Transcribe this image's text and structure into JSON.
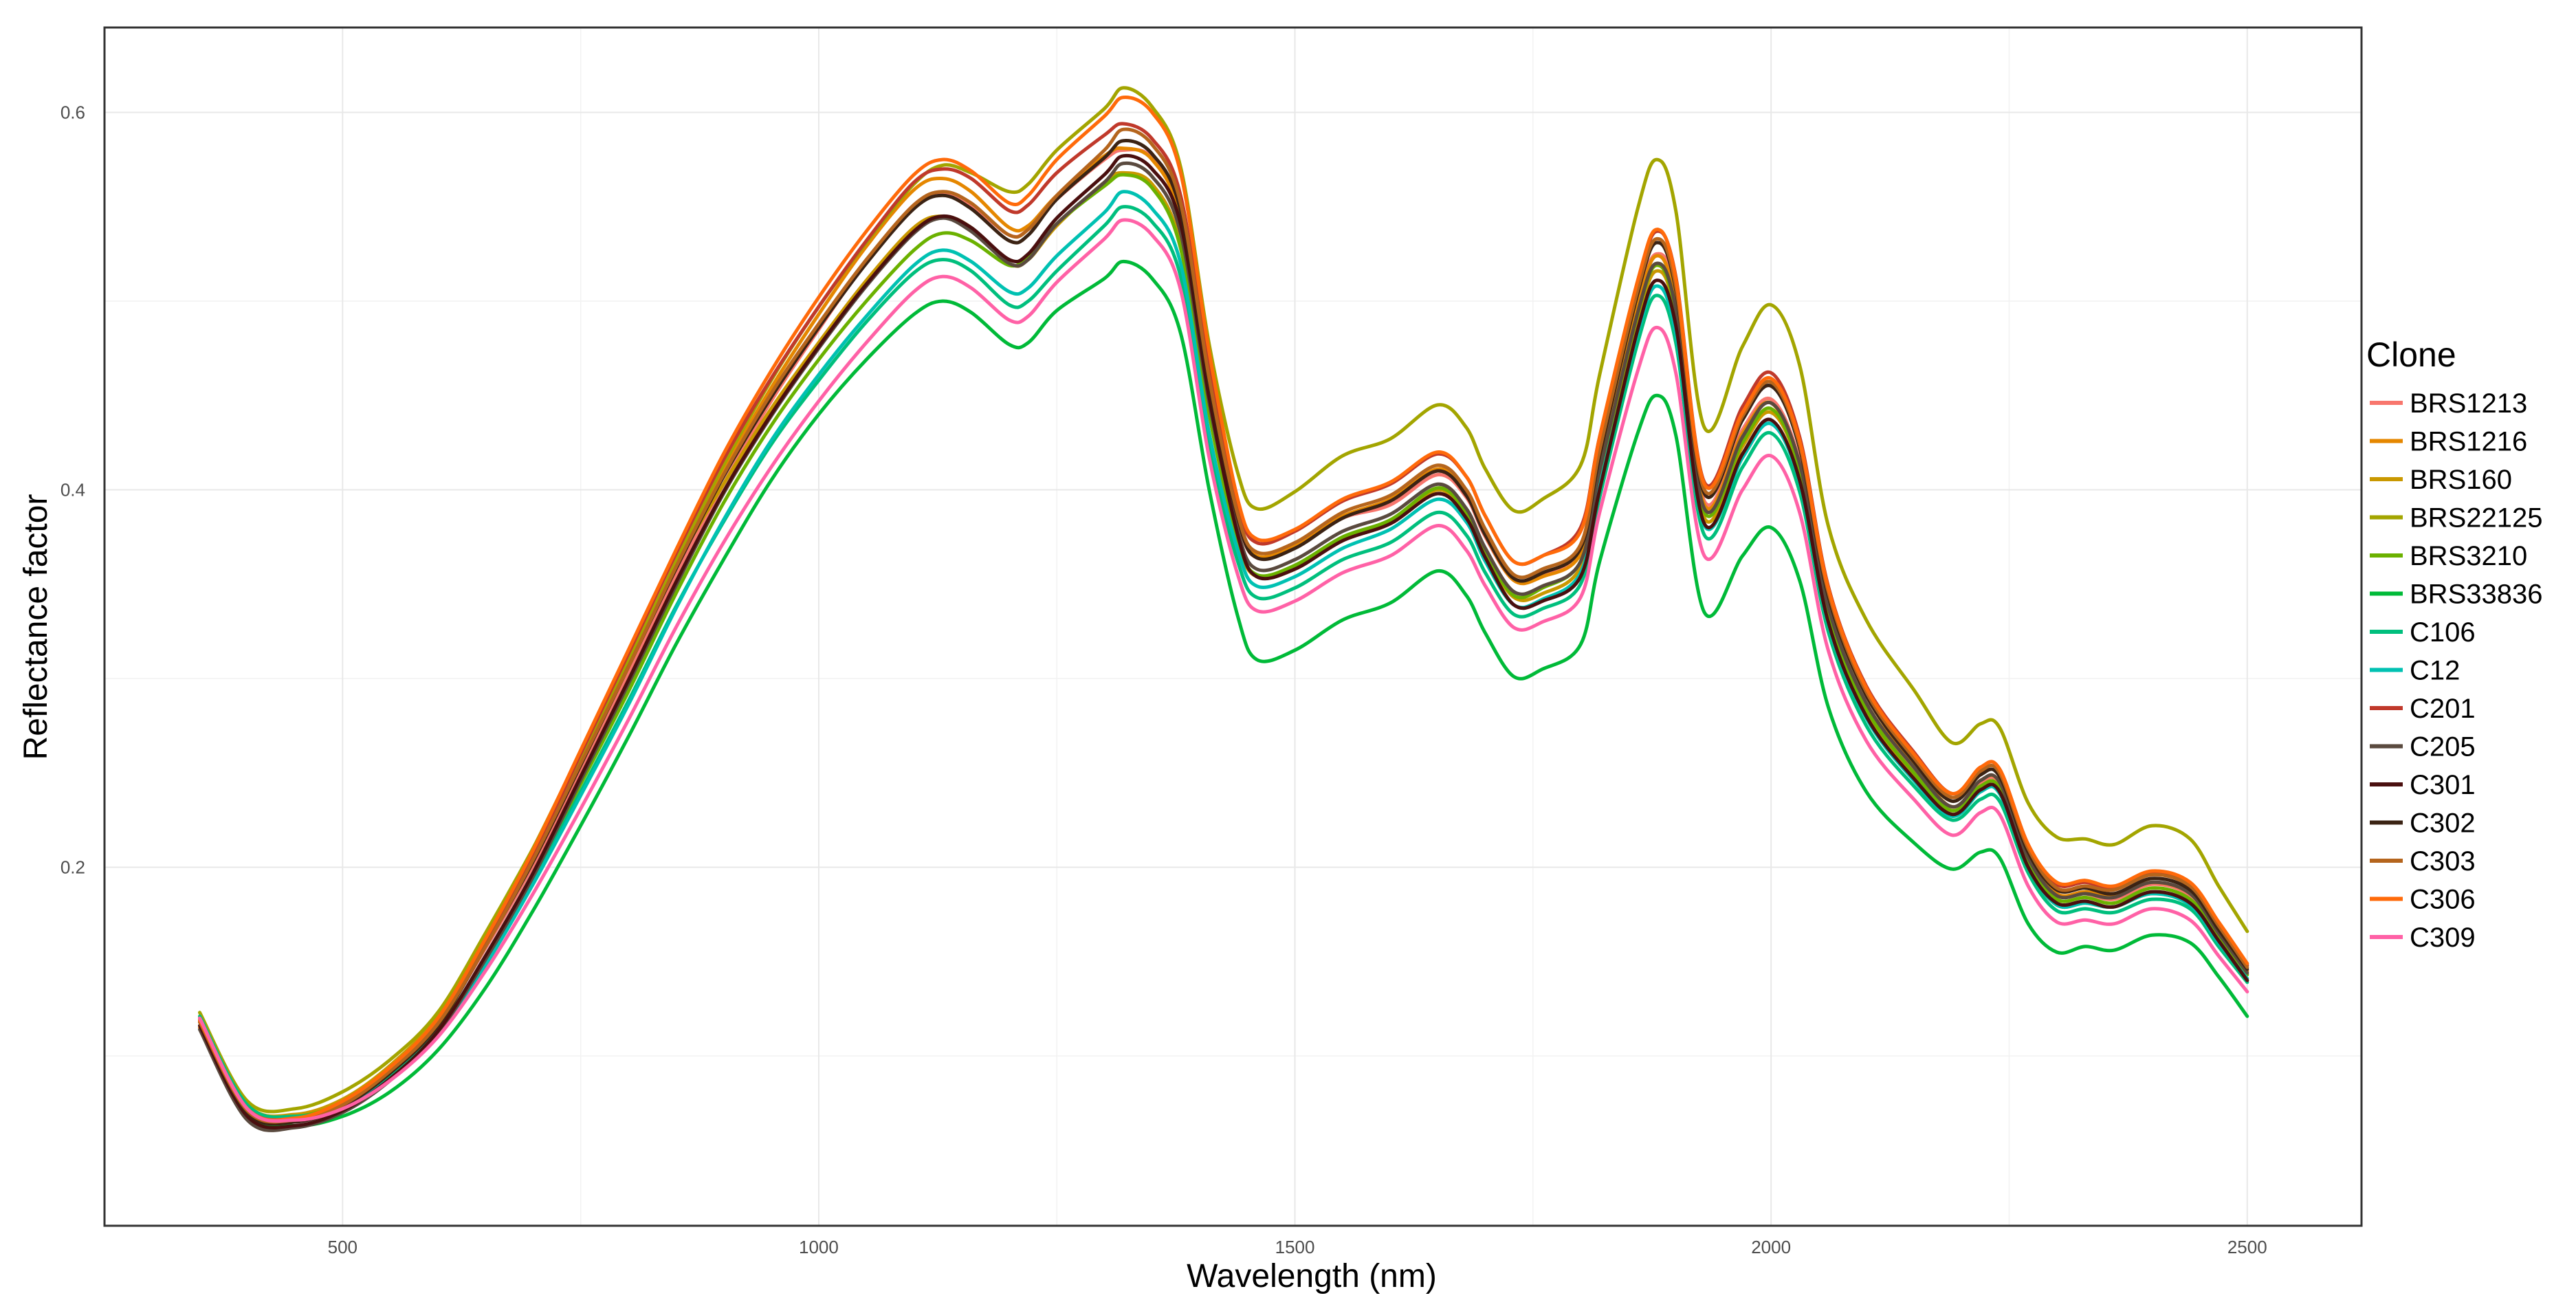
{
  "chart_data": {
    "type": "line",
    "xlabel": "Wavelength (nm)",
    "ylabel": "Reflectance factor",
    "xlim": [
      250,
      2620
    ],
    "ylim": [
      0.01,
      0.645
    ],
    "x_ticks": [
      500,
      1000,
      1500,
      2000,
      2500
    ],
    "x_tick_labels": [
      "500",
      "1000",
      "1500",
      "2000",
      "2500"
    ],
    "y_ticks": [
      0.2,
      0.4,
      0.6
    ],
    "y_tick_labels": [
      "0.2",
      "0.4",
      "0.6"
    ],
    "grid": true,
    "legend_title": "Clone",
    "legend_position": "right",
    "x": [
      350,
      400,
      450,
      500,
      550,
      600,
      650,
      700,
      750,
      800,
      850,
      900,
      950,
      1000,
      1050,
      1100,
      1130,
      1160,
      1200,
      1220,
      1250,
      1300,
      1320,
      1350,
      1380,
      1410,
      1440,
      1460,
      1500,
      1550,
      1600,
      1650,
      1680,
      1700,
      1730,
      1760,
      1800,
      1820,
      1860,
      1880,
      1900,
      1930,
      1970,
      2000,
      2030,
      2060,
      2100,
      2150,
      2190,
      2220,
      2240,
      2270,
      2300,
      2330,
      2360,
      2400,
      2440,
      2470,
      2500
    ],
    "series": [
      {
        "name": "BRS1213",
        "color": "#F8766D",
        "values": [
          0.118,
          0.072,
          0.067,
          0.075,
          0.092,
          0.117,
          0.157,
          0.201,
          0.252,
          0.302,
          0.355,
          0.403,
          0.447,
          0.485,
          0.521,
          0.551,
          0.557,
          0.551,
          0.535,
          0.538,
          0.554,
          0.575,
          0.58,
          0.576,
          0.545,
          0.452,
          0.384,
          0.364,
          0.37,
          0.385,
          0.392,
          0.408,
          0.396,
          0.375,
          0.352,
          0.355,
          0.369,
          0.418,
          0.5,
          0.525,
          0.503,
          0.394,
          0.432,
          0.448,
          0.415,
          0.337,
          0.285,
          0.252,
          0.232,
          0.245,
          0.244,
          0.206,
          0.186,
          0.186,
          0.183,
          0.191,
          0.185,
          0.165,
          0.145
        ]
      },
      {
        "name": "BRS1216",
        "color": "#E58700",
        "values": [
          0.115,
          0.07,
          0.066,
          0.074,
          0.091,
          0.117,
          0.158,
          0.204,
          0.256,
          0.307,
          0.361,
          0.41,
          0.454,
          0.493,
          0.529,
          0.559,
          0.565,
          0.558,
          0.539,
          0.54,
          0.556,
          0.577,
          0.581,
          0.575,
          0.544,
          0.452,
          0.386,
          0.365,
          0.371,
          0.386,
          0.395,
          0.411,
          0.399,
          0.376,
          0.352,
          0.354,
          0.366,
          0.412,
          0.497,
          0.524,
          0.499,
          0.392,
          0.43,
          0.446,
          0.413,
          0.338,
          0.287,
          0.254,
          0.232,
          0.246,
          0.245,
          0.207,
          0.186,
          0.187,
          0.185,
          0.192,
          0.186,
          0.166,
          0.145
        ]
      },
      {
        "name": "BRS160",
        "color": "#C99800",
        "values": [
          0.121,
          0.074,
          0.069,
          0.077,
          0.095,
          0.121,
          0.163,
          0.21,
          0.261,
          0.311,
          0.36,
          0.403,
          0.443,
          0.478,
          0.511,
          0.539,
          0.545,
          0.539,
          0.52,
          0.522,
          0.54,
          0.563,
          0.568,
          0.562,
          0.53,
          0.44,
          0.373,
          0.354,
          0.358,
          0.374,
          0.383,
          0.4,
          0.387,
          0.366,
          0.343,
          0.345,
          0.359,
          0.406,
          0.49,
          0.516,
          0.492,
          0.385,
          0.423,
          0.441,
          0.41,
          0.333,
          0.283,
          0.248,
          0.228,
          0.241,
          0.24,
          0.2,
          0.18,
          0.181,
          0.179,
          0.186,
          0.18,
          0.16,
          0.14
        ]
      },
      {
        "name": "BRS22125",
        "color": "#A3A500",
        "values": [
          0.123,
          0.076,
          0.072,
          0.081,
          0.098,
          0.123,
          0.165,
          0.21,
          0.258,
          0.309,
          0.362,
          0.413,
          0.458,
          0.497,
          0.531,
          0.562,
          0.572,
          0.568,
          0.558,
          0.562,
          0.58,
          0.602,
          0.613,
          0.603,
          0.571,
          0.477,
          0.409,
          0.39,
          0.399,
          0.418,
          0.427,
          0.445,
          0.433,
          0.411,
          0.389,
          0.395,
          0.413,
          0.461,
          0.549,
          0.575,
          0.548,
          0.433,
          0.476,
          0.498,
          0.466,
          0.381,
          0.331,
          0.294,
          0.266,
          0.276,
          0.274,
          0.234,
          0.216,
          0.215,
          0.212,
          0.222,
          0.215,
          0.19,
          0.166
        ]
      },
      {
        "name": "BRS3210",
        "color": "#6BB100",
        "values": [
          0.12,
          0.073,
          0.068,
          0.075,
          0.09,
          0.114,
          0.152,
          0.195,
          0.244,
          0.293,
          0.345,
          0.393,
          0.434,
          0.469,
          0.5,
          0.527,
          0.536,
          0.532,
          0.519,
          0.524,
          0.541,
          0.561,
          0.567,
          0.56,
          0.528,
          0.44,
          0.374,
          0.355,
          0.36,
          0.375,
          0.384,
          0.401,
          0.388,
          0.367,
          0.344,
          0.348,
          0.362,
          0.409,
          0.493,
          0.519,
          0.494,
          0.388,
          0.425,
          0.443,
          0.411,
          0.335,
          0.284,
          0.25,
          0.23,
          0.243,
          0.242,
          0.203,
          0.183,
          0.184,
          0.181,
          0.189,
          0.183,
          0.163,
          0.143
        ]
      },
      {
        "name": "BRS33836",
        "color": "#00BA38",
        "values": [
          0.118,
          0.07,
          0.063,
          0.068,
          0.081,
          0.103,
          0.136,
          0.177,
          0.222,
          0.269,
          0.318,
          0.363,
          0.405,
          0.44,
          0.469,
          0.493,
          0.5,
          0.494,
          0.477,
          0.478,
          0.495,
          0.512,
          0.521,
          0.512,
          0.483,
          0.4,
          0.333,
          0.31,
          0.315,
          0.331,
          0.34,
          0.357,
          0.344,
          0.324,
          0.301,
          0.305,
          0.318,
          0.362,
          0.43,
          0.45,
          0.429,
          0.335,
          0.365,
          0.38,
          0.352,
          0.285,
          0.24,
          0.213,
          0.199,
          0.208,
          0.205,
          0.17,
          0.155,
          0.158,
          0.156,
          0.164,
          0.16,
          0.142,
          0.121
        ]
      },
      {
        "name": "C106",
        "color": "#00BF7D",
        "values": [
          0.121,
          0.074,
          0.068,
          0.074,
          0.09,
          0.113,
          0.15,
          0.193,
          0.24,
          0.288,
          0.338,
          0.383,
          0.424,
          0.458,
          0.489,
          0.515,
          0.522,
          0.516,
          0.498,
          0.5,
          0.516,
          0.54,
          0.55,
          0.542,
          0.513,
          0.423,
          0.362,
          0.343,
          0.348,
          0.363,
          0.372,
          0.388,
          0.376,
          0.356,
          0.334,
          0.337,
          0.35,
          0.396,
          0.478,
          0.503,
          0.478,
          0.376,
          0.412,
          0.43,
          0.399,
          0.325,
          0.275,
          0.243,
          0.225,
          0.236,
          0.235,
          0.197,
          0.177,
          0.178,
          0.176,
          0.183,
          0.178,
          0.158,
          0.139
        ]
      },
      {
        "name": "C12",
        "color": "#00C1B2",
        "values": [
          0.119,
          0.072,
          0.067,
          0.072,
          0.088,
          0.111,
          0.148,
          0.191,
          0.238,
          0.286,
          0.337,
          0.384,
          0.426,
          0.461,
          0.492,
          0.519,
          0.527,
          0.521,
          0.505,
          0.507,
          0.524,
          0.547,
          0.558,
          0.549,
          0.52,
          0.43,
          0.368,
          0.349,
          0.354,
          0.369,
          0.379,
          0.395,
          0.383,
          0.362,
          0.339,
          0.342,
          0.356,
          0.402,
          0.483,
          0.508,
          0.483,
          0.381,
          0.417,
          0.435,
          0.404,
          0.329,
          0.279,
          0.246,
          0.227,
          0.24,
          0.239,
          0.2,
          0.18,
          0.181,
          0.179,
          0.186,
          0.18,
          0.16,
          0.141
        ]
      },
      {
        "name": "C201",
        "color": "#C0392B",
        "values": [
          0.118,
          0.072,
          0.067,
          0.075,
          0.093,
          0.119,
          0.161,
          0.207,
          0.26,
          0.313,
          0.366,
          0.416,
          0.459,
          0.497,
          0.532,
          0.563,
          0.57,
          0.565,
          0.548,
          0.551,
          0.568,
          0.588,
          0.594,
          0.586,
          0.556,
          0.463,
          0.392,
          0.372,
          0.378,
          0.394,
          0.403,
          0.419,
          0.407,
          0.386,
          0.362,
          0.365,
          0.38,
          0.428,
          0.51,
          0.537,
          0.513,
          0.404,
          0.444,
          0.462,
          0.428,
          0.349,
          0.296,
          0.261,
          0.239,
          0.253,
          0.252,
          0.212,
          0.191,
          0.192,
          0.189,
          0.197,
          0.191,
          0.17,
          0.148
        ]
      },
      {
        "name": "C205",
        "color": "#5A4A3F",
        "values": [
          0.114,
          0.066,
          0.062,
          0.07,
          0.087,
          0.112,
          0.151,
          0.195,
          0.246,
          0.297,
          0.349,
          0.398,
          0.439,
          0.475,
          0.508,
          0.536,
          0.544,
          0.537,
          0.52,
          0.522,
          0.541,
          0.563,
          0.573,
          0.566,
          0.536,
          0.446,
          0.378,
          0.358,
          0.363,
          0.378,
          0.387,
          0.403,
          0.39,
          0.369,
          0.346,
          0.349,
          0.362,
          0.41,
          0.494,
          0.52,
          0.496,
          0.39,
          0.428,
          0.446,
          0.414,
          0.338,
          0.287,
          0.253,
          0.232,
          0.246,
          0.245,
          0.205,
          0.185,
          0.186,
          0.184,
          0.192,
          0.186,
          0.165,
          0.144
        ]
      },
      {
        "name": "C301",
        "color": "#4A0F0F",
        "values": [
          0.116,
          0.068,
          0.063,
          0.071,
          0.088,
          0.113,
          0.153,
          0.197,
          0.248,
          0.299,
          0.351,
          0.399,
          0.44,
          0.476,
          0.509,
          0.537,
          0.545,
          0.539,
          0.522,
          0.525,
          0.544,
          0.567,
          0.577,
          0.57,
          0.541,
          0.449,
          0.376,
          0.354,
          0.358,
          0.373,
          0.382,
          0.398,
          0.385,
          0.364,
          0.339,
          0.341,
          0.354,
          0.4,
          0.485,
          0.511,
          0.487,
          0.382,
          0.419,
          0.437,
          0.405,
          0.33,
          0.28,
          0.247,
          0.228,
          0.241,
          0.24,
          0.2,
          0.181,
          0.182,
          0.179,
          0.187,
          0.181,
          0.161,
          0.14
        ]
      },
      {
        "name": "C302",
        "color": "#3B2314",
        "values": [
          0.118,
          0.07,
          0.065,
          0.073,
          0.091,
          0.116,
          0.158,
          0.203,
          0.254,
          0.306,
          0.358,
          0.407,
          0.449,
          0.486,
          0.52,
          0.549,
          0.556,
          0.549,
          0.532,
          0.535,
          0.554,
          0.576,
          0.585,
          0.578,
          0.548,
          0.456,
          0.385,
          0.364,
          0.369,
          0.385,
          0.394,
          0.41,
          0.397,
          0.376,
          0.353,
          0.356,
          0.369,
          0.418,
          0.504,
          0.531,
          0.506,
          0.398,
          0.437,
          0.455,
          0.422,
          0.344,
          0.291,
          0.256,
          0.235,
          0.249,
          0.248,
          0.208,
          0.188,
          0.189,
          0.186,
          0.194,
          0.188,
          0.167,
          0.146
        ]
      },
      {
        "name": "C303",
        "color": "#B5651D",
        "values": [
          0.118,
          0.071,
          0.066,
          0.074,
          0.092,
          0.117,
          0.158,
          0.204,
          0.255,
          0.306,
          0.359,
          0.408,
          0.451,
          0.488,
          0.522,
          0.551,
          0.558,
          0.552,
          0.535,
          0.538,
          0.556,
          0.58,
          0.591,
          0.583,
          0.552,
          0.459,
          0.387,
          0.367,
          0.372,
          0.388,
          0.397,
          0.413,
          0.4,
          0.379,
          0.355,
          0.358,
          0.371,
          0.421,
          0.506,
          0.533,
          0.508,
          0.4,
          0.439,
          0.457,
          0.424,
          0.346,
          0.293,
          0.258,
          0.237,
          0.251,
          0.25,
          0.21,
          0.189,
          0.19,
          0.188,
          0.196,
          0.19,
          0.169,
          0.147
        ]
      },
      {
        "name": "C306",
        "color": "#FF6A0A",
        "values": [
          0.119,
          0.072,
          0.067,
          0.076,
          0.094,
          0.12,
          0.162,
          0.209,
          0.262,
          0.315,
          0.368,
          0.419,
          0.463,
          0.502,
          0.537,
          0.567,
          0.575,
          0.569,
          0.552,
          0.556,
          0.575,
          0.598,
          0.608,
          0.6,
          0.568,
          0.473,
          0.395,
          0.374,
          0.379,
          0.395,
          0.404,
          0.42,
          0.407,
          0.386,
          0.362,
          0.365,
          0.378,
          0.428,
          0.511,
          0.538,
          0.512,
          0.403,
          0.441,
          0.459,
          0.426,
          0.348,
          0.295,
          0.26,
          0.239,
          0.253,
          0.252,
          0.212,
          0.192,
          0.193,
          0.19,
          0.198,
          0.192,
          0.171,
          0.149
        ]
      },
      {
        "name": "C309",
        "color": "#FF61A6",
        "values": [
          0.12,
          0.072,
          0.066,
          0.072,
          0.087,
          0.11,
          0.145,
          0.186,
          0.231,
          0.278,
          0.327,
          0.372,
          0.412,
          0.447,
          0.478,
          0.505,
          0.513,
          0.507,
          0.49,
          0.492,
          0.51,
          0.533,
          0.543,
          0.535,
          0.506,
          0.417,
          0.355,
          0.336,
          0.341,
          0.356,
          0.365,
          0.381,
          0.368,
          0.349,
          0.327,
          0.33,
          0.343,
          0.388,
          0.463,
          0.486,
          0.462,
          0.365,
          0.4,
          0.418,
          0.388,
          0.315,
          0.267,
          0.236,
          0.217,
          0.229,
          0.228,
          0.19,
          0.171,
          0.172,
          0.17,
          0.178,
          0.172,
          0.153,
          0.134
        ]
      }
    ]
  }
}
